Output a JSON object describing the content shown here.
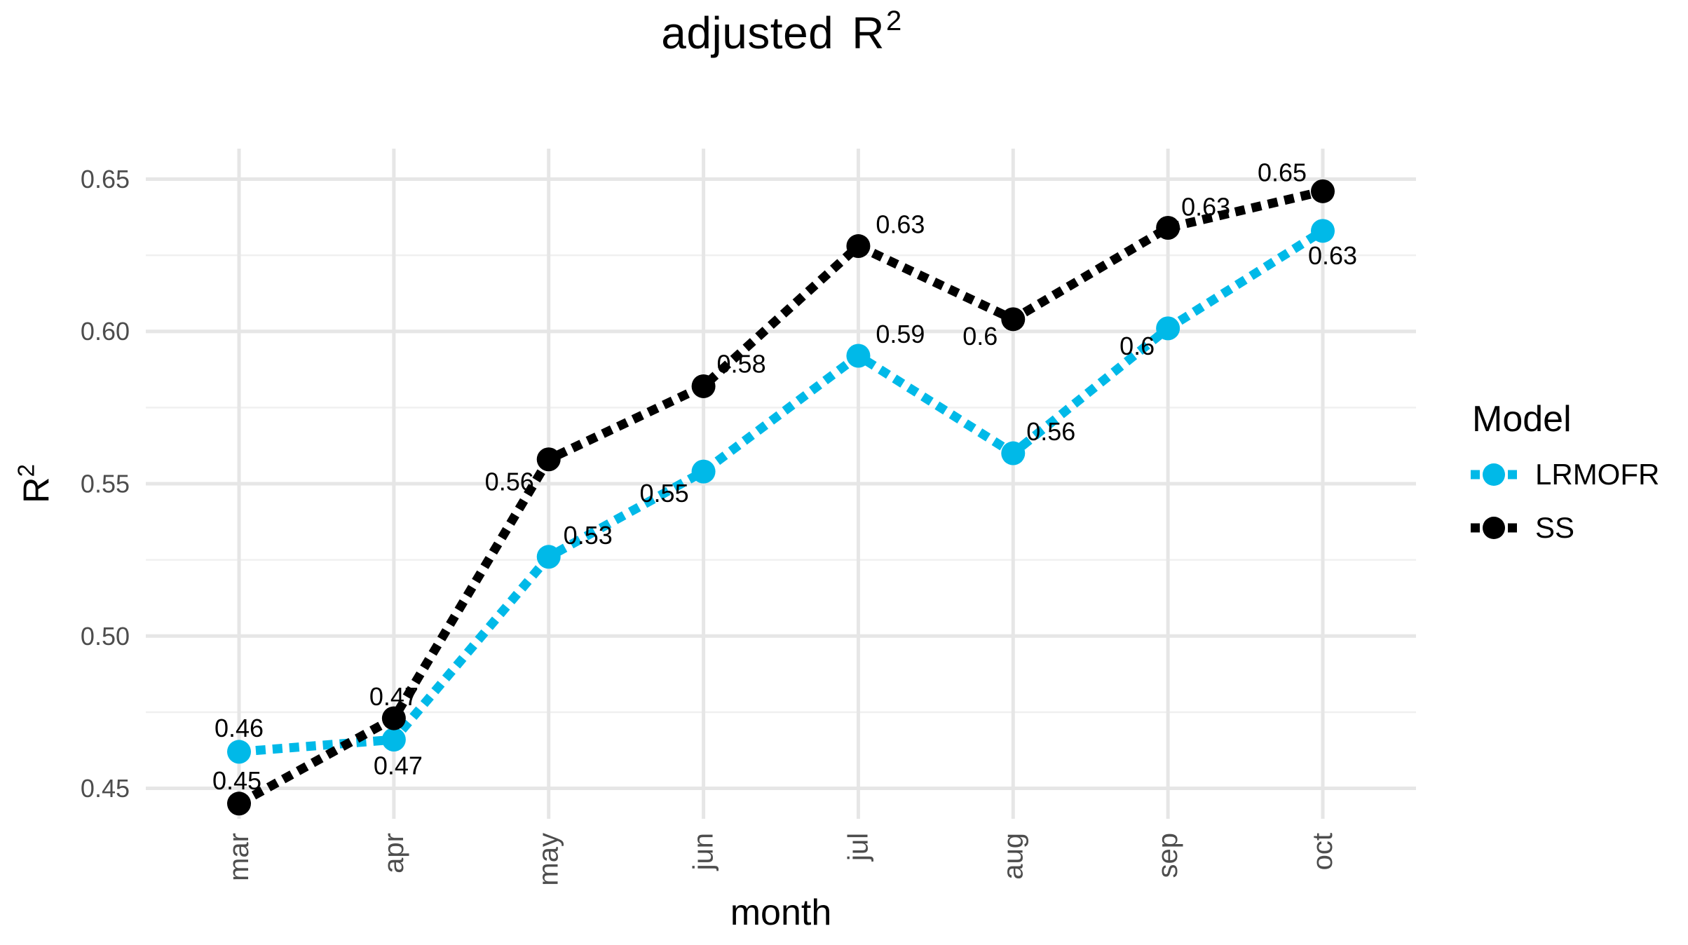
{
  "title": {
    "prefix": "adjusted",
    "r": "R",
    "sup": "2"
  },
  "axes": {
    "x_title": "month",
    "y_title_base": "R",
    "y_title_sup": "2"
  },
  "legend": {
    "title": "Model",
    "entries": [
      {
        "label": "LRMOFR",
        "color": "#00B9E8"
      },
      {
        "label": "SS",
        "color": "#000000"
      }
    ]
  },
  "chart_data": {
    "type": "line",
    "title": "adjusted R²",
    "xlabel": "month",
    "ylabel": "R²",
    "x": [
      "mar",
      "apr",
      "may",
      "jun",
      "jul",
      "aug",
      "sep",
      "oct"
    ],
    "series": [
      {
        "name": "LRMOFR",
        "color": "#00B9E8",
        "values": [
          0.462,
          0.466,
          0.526,
          0.554,
          0.592,
          0.56,
          0.601,
          0.633
        ],
        "point_labels": [
          "0.46",
          "0.47",
          "0.53",
          "0.55",
          "0.59",
          "0.56",
          "0.6",
          "0.63"
        ],
        "label_offsets": [
          [
            0,
            -34
          ],
          [
            6,
            37
          ],
          [
            56,
            -31
          ],
          [
            -56,
            31
          ],
          [
            60,
            -31
          ],
          [
            54,
            -31
          ],
          [
            -44,
            25
          ],
          [
            14,
            35
          ]
        ]
      },
      {
        "name": "SS",
        "color": "#000000",
        "values": [
          0.445,
          0.473,
          0.558,
          0.582,
          0.628,
          0.604,
          0.634,
          0.646
        ],
        "point_labels": [
          "0.45",
          "0.47",
          "0.56",
          "0.58",
          "0.63",
          "0.6",
          "0.63",
          "0.65"
        ],
        "label_offsets": [
          [
            -3,
            -33
          ],
          [
            0,
            -31
          ],
          [
            -56,
            32
          ],
          [
            54,
            -32
          ],
          [
            60,
            -31
          ],
          [
            -47,
            24
          ],
          [
            54,
            -30
          ],
          [
            -58,
            -27
          ]
        ]
      }
    ],
    "ylim": [
      0.44,
      0.66
    ],
    "y_ticks": {
      "values": [
        0.45,
        0.5,
        0.55,
        0.6,
        0.65
      ],
      "labels": [
        "0.45",
        "0.50",
        "0.55",
        "0.60",
        "0.65"
      ]
    },
    "y_minor_ticks": [
      0.475,
      0.525,
      0.575,
      0.625
    ],
    "grid": "on",
    "legend_position": "right",
    "line_style": "dotted"
  },
  "colors": {
    "grid_major": "#E6E6E6",
    "grid_minor": "#F0F0F0",
    "tick_text": "#4D4D4D",
    "data_label_text": "#000000",
    "background": "#FFFFFF"
  }
}
